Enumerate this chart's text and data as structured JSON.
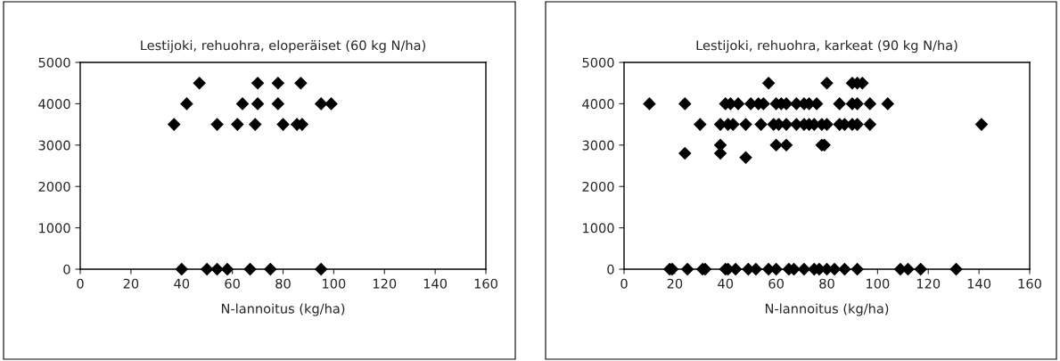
{
  "chart_data": [
    {
      "type": "scatter",
      "title": "Lestijoki, rehuohra, eloperäiset (60 kg N/ha)",
      "xlabel": "N-lannoitus (kg/ha)",
      "xlim": [
        0,
        160
      ],
      "xticks": [
        0,
        20,
        40,
        60,
        80,
        100,
        120,
        140,
        160
      ],
      "ylim": [
        0,
        5000
      ],
      "yticks": [
        0,
        1000,
        2000,
        3000,
        4000,
        5000
      ],
      "marker": "diamond",
      "grid": false,
      "legend": false,
      "series": [
        {
          "color": "#000000",
          "x": [
            47,
            70,
            78,
            87,
            42,
            64,
            70,
            78,
            95,
            99,
            37,
            54,
            62,
            69,
            80,
            85.5,
            87.5,
            40,
            50,
            54,
            58,
            67,
            75,
            95
          ],
          "values": [
            4500,
            4500,
            4500,
            4500,
            4000,
            4000,
            4000,
            4000,
            4000,
            4000,
            3500,
            3500,
            3500,
            3500,
            3500,
            3500,
            3500,
            0,
            0,
            0,
            0,
            0,
            0,
            0
          ]
        }
      ]
    },
    {
      "type": "scatter",
      "title": "Lestijoki, rehuohra, karkeat (90 kg N/ha)",
      "xlabel": "N-lannoitus (kg/ha)",
      "xlim": [
        0,
        160
      ],
      "xticks": [
        0,
        20,
        40,
        60,
        80,
        100,
        120,
        140,
        160
      ],
      "ylim": [
        0,
        5000
      ],
      "yticks": [
        0,
        1000,
        2000,
        3000,
        4000,
        5000
      ],
      "marker": "diamond",
      "grid": false,
      "legend": false,
      "series": [
        {
          "color": "#000000",
          "x": [
            57,
            80,
            90,
            92,
            94,
            10,
            24,
            40,
            42,
            45,
            50,
            53,
            55,
            60,
            62,
            64,
            68,
            71,
            73,
            76,
            85,
            90,
            92,
            97,
            104,
            30,
            38,
            41,
            43,
            48,
            54,
            59,
            61,
            64,
            68,
            71,
            73,
            75,
            78,
            80,
            85,
            87,
            90,
            92,
            97,
            141,
            38,
            60,
            64,
            78,
            79,
            24,
            38,
            48,
            18,
            19,
            25,
            31,
            32,
            40,
            41,
            44,
            49,
            52,
            57,
            60,
            65,
            67,
            71,
            75,
            77,
            80,
            83,
            87,
            92,
            109,
            112,
            117,
            131
          ],
          "values": [
            4500,
            4500,
            4500,
            4500,
            4500,
            4000,
            4000,
            4000,
            4000,
            4000,
            4000,
            4000,
            4000,
            4000,
            4000,
            4000,
            4000,
            4000,
            4000,
            4000,
            4000,
            4000,
            4000,
            4000,
            4000,
            3500,
            3500,
            3500,
            3500,
            3500,
            3500,
            3500,
            3500,
            3500,
            3500,
            3500,
            3500,
            3500,
            3500,
            3500,
            3500,
            3500,
            3500,
            3500,
            3500,
            3500,
            3000,
            3000,
            3000,
            3000,
            3000,
            2800,
            2800,
            2700,
            0,
            0,
            0,
            0,
            0,
            0,
            0,
            0,
            0,
            0,
            0,
            0,
            0,
            0,
            0,
            0,
            0,
            0,
            0,
            0,
            0,
            0,
            0,
            0,
            0
          ]
        }
      ]
    }
  ]
}
